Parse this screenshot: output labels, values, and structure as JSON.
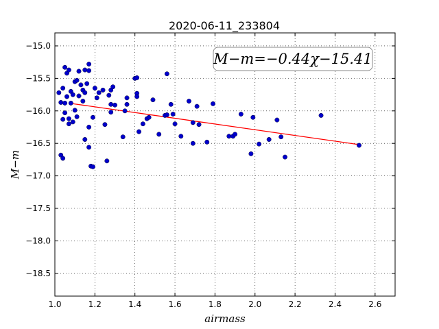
{
  "chart_data": {
    "type": "scatter",
    "title": "2020-06-11_233804",
    "xlabel": "airmass",
    "ylabel": "M−m",
    "xlim": [
      1.0,
      2.7
    ],
    "ylim": [
      -18.85,
      -14.8
    ],
    "y_inverted": true,
    "grid": true,
    "xticks": [
      1.0,
      1.2,
      1.4,
      1.6,
      1.8,
      2.0,
      2.2,
      2.4,
      2.6
    ],
    "xtick_labels": [
      "1.0",
      "1.2",
      "1.4",
      "1.6",
      "1.8",
      "2.0",
      "2.2",
      "2.4",
      "2.6"
    ],
    "yticks": [
      -15.0,
      -15.5,
      -16.0,
      -16.5,
      -17.0,
      -17.5,
      -18.0,
      -18.5
    ],
    "ytick_labels": [
      "−15.0",
      "−15.5",
      "−16.0",
      "−16.5",
      "−17.0",
      "−17.5",
      "−18.0",
      "−18.5"
    ],
    "annotation": "M−m=−0.44χ−15.41",
    "fit": {
      "slope": -0.44,
      "intercept": -15.41,
      "x_range": [
        1.07,
        2.52
      ],
      "color": "#ff0000"
    },
    "point_color": "#0000cc",
    "points": [
      [
        1.02,
        -15.72
      ],
      [
        1.03,
        -15.87
      ],
      [
        1.04,
        -15.65
      ],
      [
        1.05,
        -15.33
      ],
      [
        1.06,
        -15.42
      ],
      [
        1.07,
        -15.37
      ],
      [
        1.05,
        -15.88
      ],
      [
        1.06,
        -15.78
      ],
      [
        1.08,
        -15.7
      ],
      [
        1.09,
        -15.75
      ],
      [
        1.1,
        -15.55
      ],
      [
        1.11,
        -15.53
      ],
      [
        1.12,
        -15.39
      ],
      [
        1.13,
        -15.6
      ],
      [
        1.14,
        -15.68
      ],
      [
        1.15,
        -15.37
      ],
      [
        1.16,
        -15.58
      ],
      [
        1.17,
        -15.28
      ],
      [
        1.17,
        -15.38
      ],
      [
        1.15,
        -15.72
      ],
      [
        1.12,
        -15.77
      ],
      [
        1.14,
        -15.85
      ],
      [
        1.08,
        -15.88
      ],
      [
        1.1,
        -15.99
      ],
      [
        1.05,
        -16.03
      ],
      [
        1.04,
        -16.13
      ],
      [
        1.07,
        -16.12
      ],
      [
        1.09,
        -16.17
      ],
      [
        1.07,
        -16.2
      ],
      [
        1.11,
        -16.09
      ],
      [
        1.03,
        -16.68
      ],
      [
        1.04,
        -16.73
      ],
      [
        1.17,
        -16.25
      ],
      [
        1.19,
        -16.1
      ],
      [
        1.15,
        -16.44
      ],
      [
        1.17,
        -16.56
      ],
      [
        1.18,
        -16.85
      ],
      [
        1.19,
        -16.86
      ],
      [
        1.2,
        -15.65
      ],
      [
        1.22,
        -15.72
      ],
      [
        1.24,
        -15.68
      ],
      [
        1.21,
        -15.8
      ],
      [
        1.27,
        -15.76
      ],
      [
        1.28,
        -15.68
      ],
      [
        1.29,
        -15.63
      ],
      [
        1.28,
        -15.9
      ],
      [
        1.3,
        -15.91
      ],
      [
        1.28,
        -16.02
      ],
      [
        1.25,
        -16.21
      ],
      [
        1.26,
        -16.77
      ],
      [
        1.34,
        -16.4
      ],
      [
        1.35,
        -16.0
      ],
      [
        1.36,
        -15.9
      ],
      [
        1.36,
        -15.8
      ],
      [
        1.4,
        -15.5
      ],
      [
        1.41,
        -15.49
      ],
      [
        1.41,
        -15.73
      ],
      [
        1.41,
        -15.78
      ],
      [
        1.42,
        -16.32
      ],
      [
        1.44,
        -16.2
      ],
      [
        1.46,
        -16.12
      ],
      [
        1.47,
        -16.1
      ],
      [
        1.49,
        -15.83
      ],
      [
        1.52,
        -16.36
      ],
      [
        1.55,
        -16.07
      ],
      [
        1.56,
        -16.06
      ],
      [
        1.56,
        -15.43
      ],
      [
        1.58,
        -15.9
      ],
      [
        1.59,
        -16.05
      ],
      [
        1.6,
        -16.2
      ],
      [
        1.63,
        -16.39
      ],
      [
        1.67,
        -15.85
      ],
      [
        1.69,
        -16.18
      ],
      [
        1.69,
        -16.5
      ],
      [
        1.71,
        -15.93
      ],
      [
        1.72,
        -16.21
      ],
      [
        1.76,
        -16.48
      ],
      [
        1.79,
        -15.89
      ],
      [
        1.87,
        -16.39
      ],
      [
        1.89,
        -16.39
      ],
      [
        1.9,
        -16.36
      ],
      [
        1.93,
        -16.05
      ],
      [
        1.98,
        -16.66
      ],
      [
        1.99,
        -16.1
      ],
      [
        2.02,
        -16.51
      ],
      [
        2.07,
        -16.44
      ],
      [
        2.11,
        -16.14
      ],
      [
        2.13,
        -16.4
      ],
      [
        2.15,
        -16.71
      ],
      [
        2.33,
        -16.07
      ],
      [
        2.52,
        -16.53
      ]
    ]
  }
}
